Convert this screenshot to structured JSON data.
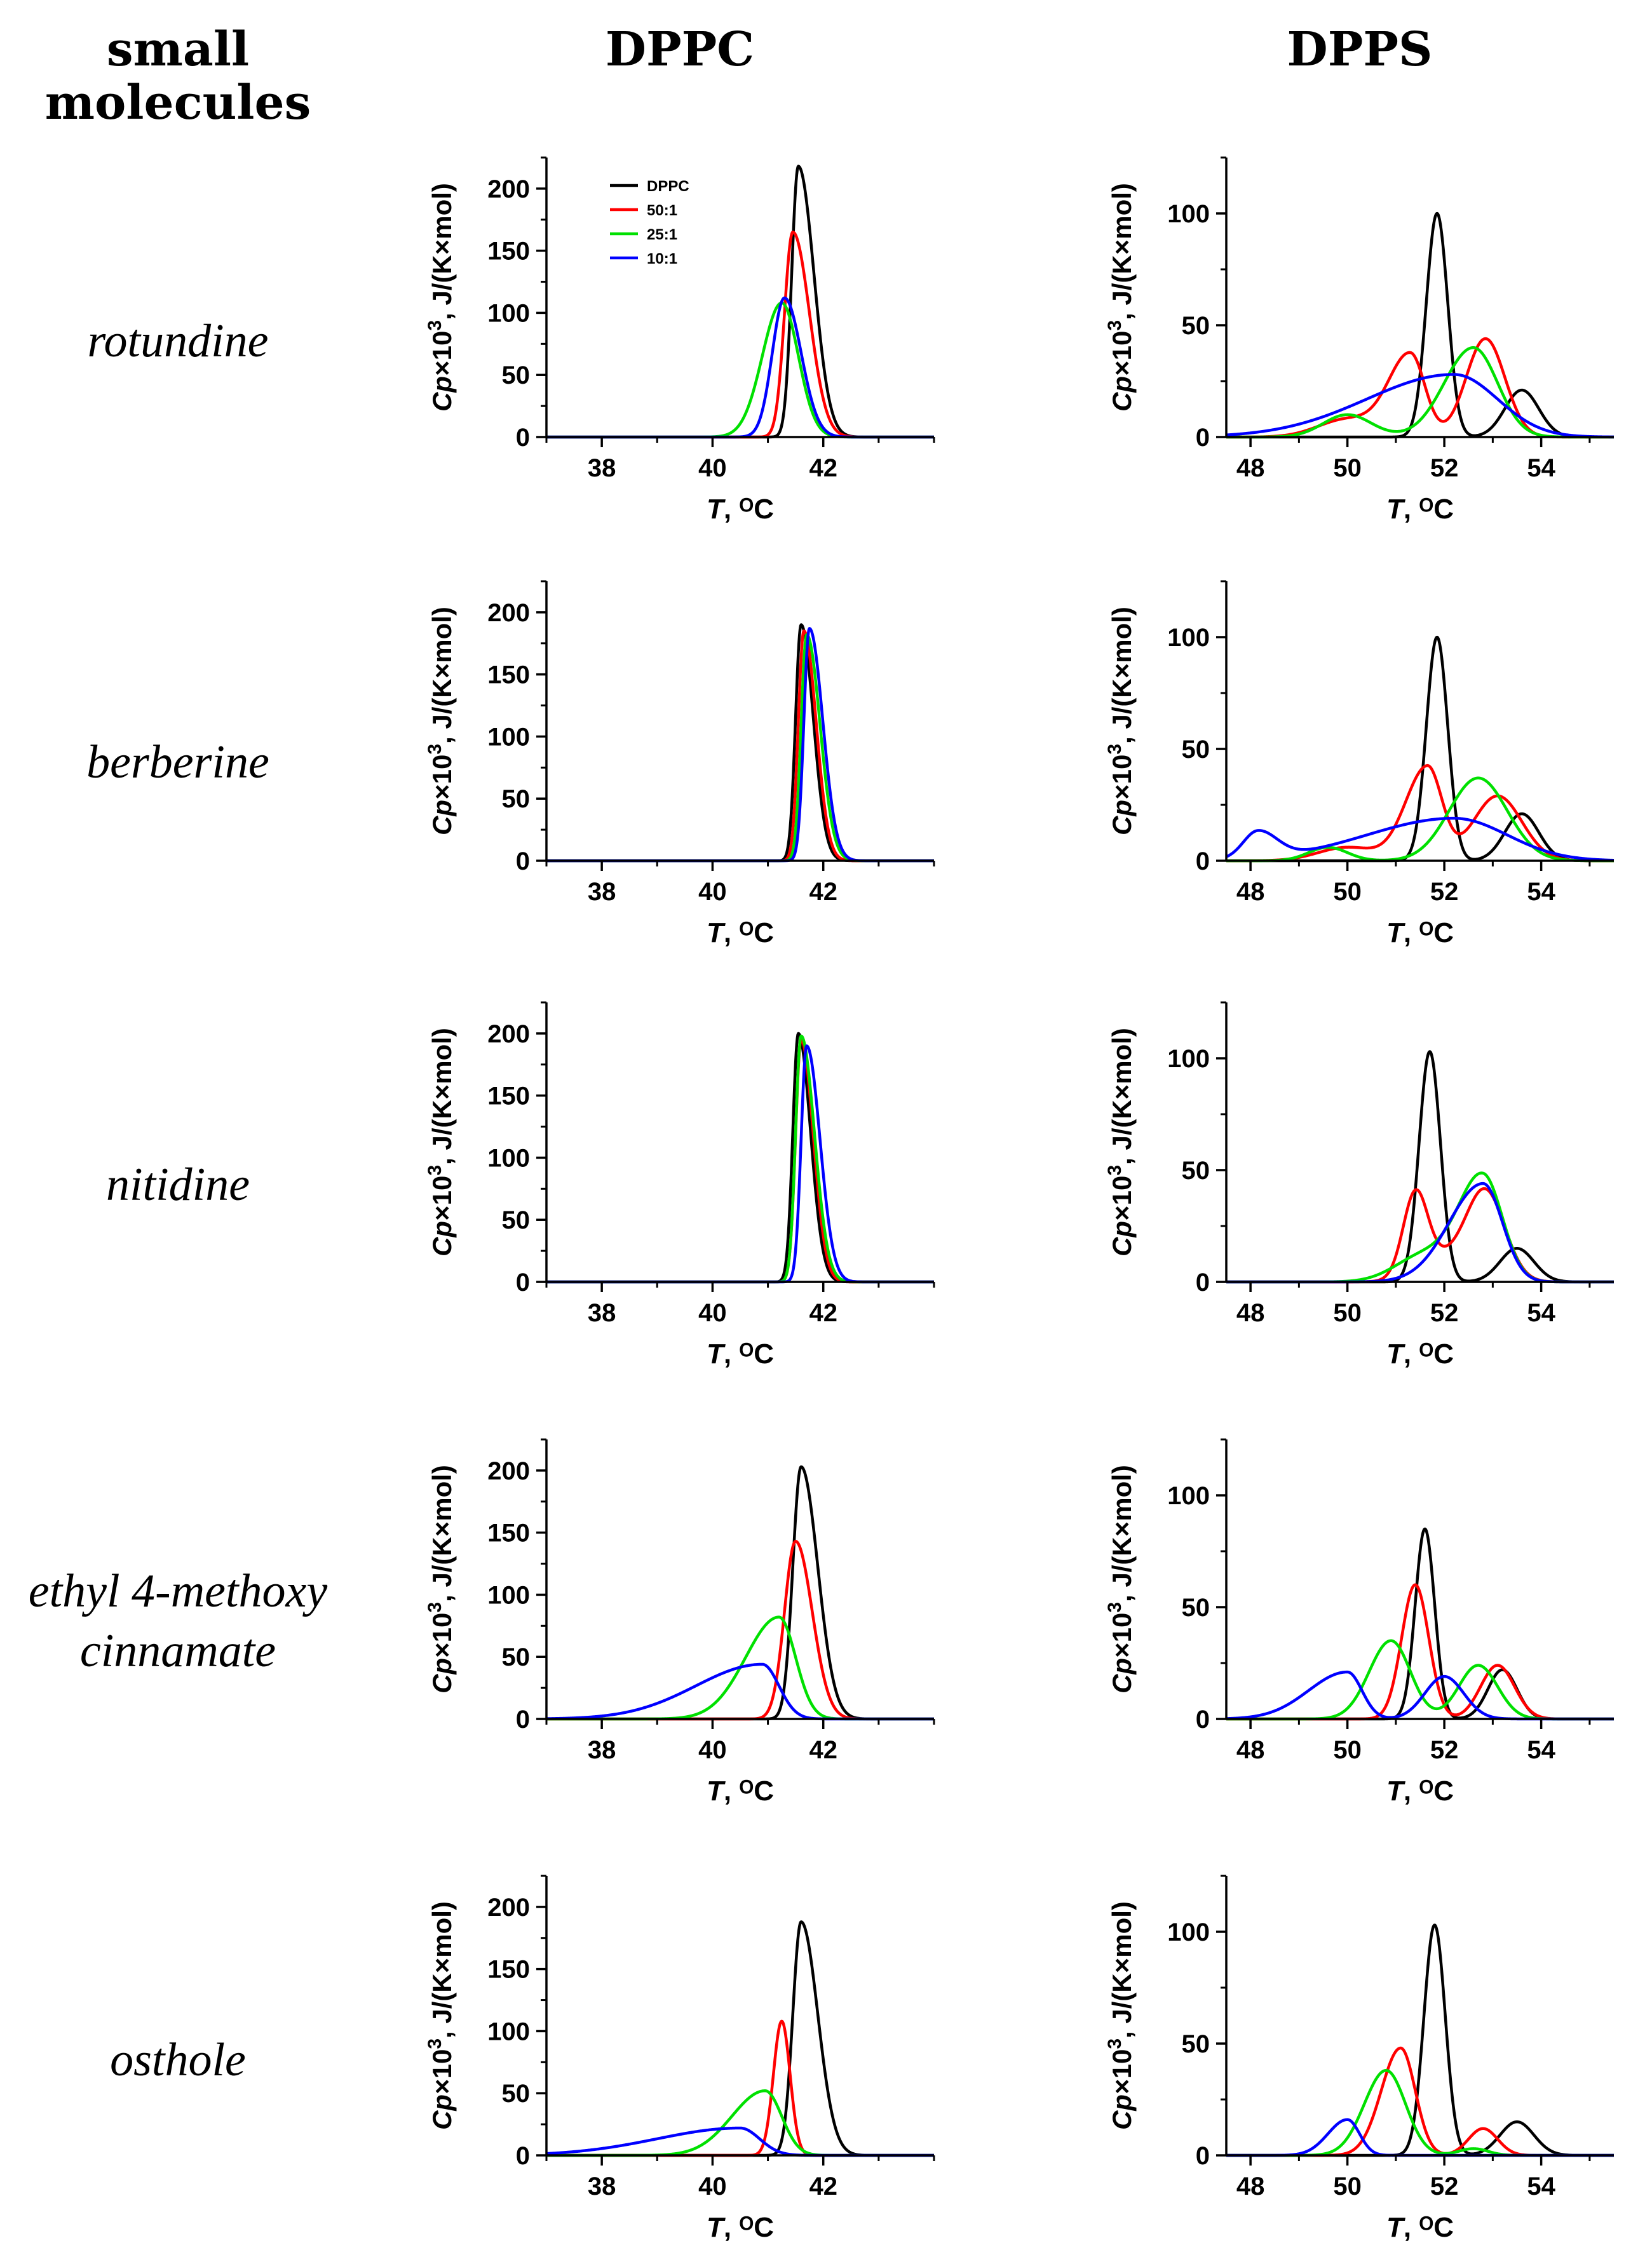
{
  "headers": {
    "molecules": "small\nmolecules",
    "dppc": "DPPC",
    "dpps": "DPPS"
  },
  "rows": [
    {
      "label": "rotundine"
    },
    {
      "label": "berberine"
    },
    {
      "label": "nitidine"
    },
    {
      "label": "ethyl 4-methoxy\ncinnamate"
    },
    {
      "label": "osthole"
    }
  ],
  "colors": {
    "DPPC": "#000000",
    "50:1": "#ff0000",
    "25:1": "#00e000",
    "10:1": "#0000ff"
  },
  "legend": [
    "DPPC",
    "50:1",
    "25:1",
    "10:1"
  ],
  "axis_labels": {
    "y_main": "Cp",
    "y_rest": "×10",
    "y_exp": "3",
    "y_unit": ", J/(K×mol)",
    "x_t": "T",
    "x_unit": ", ᴼC"
  },
  "chart_data": [
    {
      "type": "line",
      "row": "rotundine",
      "lipid": "DPPC",
      "xlim": [
        37,
        44
      ],
      "ylim": [
        0,
        225
      ],
      "xticks": [
        38,
        40,
        42
      ],
      "yticks": [
        0,
        50,
        100,
        150,
        200
      ],
      "series": [
        {
          "name": "DPPC",
          "peaks": [
            [
              41.55,
              218,
              0.12,
              0.28
            ]
          ]
        },
        {
          "name": "50:1",
          "peaks": [
            [
              41.45,
              165,
              0.15,
              0.3
            ]
          ]
        },
        {
          "name": "25:1",
          "peaks": [
            [
              41.25,
              108,
              0.35,
              0.3
            ]
          ]
        },
        {
          "name": "10:1",
          "peaks": [
            [
              41.3,
              112,
              0.22,
              0.3
            ]
          ]
        }
      ]
    },
    {
      "type": "line",
      "row": "rotundine",
      "lipid": "DPPS",
      "xlim": [
        47.5,
        55.5
      ],
      "ylim": [
        0,
        125
      ],
      "xticks": [
        48,
        50,
        52,
        54
      ],
      "yticks": [
        0,
        50,
        100
      ],
      "series": [
        {
          "name": "DPPC",
          "peaks": [
            [
              51.85,
              100,
              0.22,
              0.22
            ],
            [
              53.6,
              21,
              0.35,
              0.35
            ]
          ]
        },
        {
          "name": "50:1",
          "peaks": [
            [
              51.3,
              37,
              0.45,
              0.3
            ],
            [
              52.85,
              44,
              0.4,
              0.4
            ],
            [
              50.0,
              8,
              0.6,
              0.6
            ]
          ]
        },
        {
          "name": "25:1",
          "peaks": [
            [
              52.6,
              40,
              0.6,
              0.5
            ],
            [
              50.0,
              10,
              0.5,
              0.5
            ]
          ]
        },
        {
          "name": "10:1",
          "peaks": [
            [
              52.2,
              28,
              1.8,
              0.9
            ]
          ]
        }
      ]
    },
    {
      "type": "line",
      "row": "berberine",
      "lipid": "DPPC",
      "xlim": [
        37,
        44
      ],
      "ylim": [
        0,
        225
      ],
      "xticks": [
        38,
        40,
        42
      ],
      "yticks": [
        0,
        50,
        100,
        150,
        200
      ],
      "series": [
        {
          "name": "DPPC",
          "peaks": [
            [
              41.6,
              190,
              0.1,
              0.22
            ]
          ]
        },
        {
          "name": "50:1",
          "peaks": [
            [
              41.65,
              185,
              0.1,
              0.22
            ]
          ]
        },
        {
          "name": "25:1",
          "peaks": [
            [
              41.7,
              182,
              0.1,
              0.24
            ]
          ]
        },
        {
          "name": "10:1",
          "peaks": [
            [
              41.75,
              187,
              0.1,
              0.24
            ]
          ]
        }
      ]
    },
    {
      "type": "line",
      "row": "berberine",
      "lipid": "DPPS",
      "xlim": [
        47.5,
        55.5
      ],
      "ylim": [
        0,
        125
      ],
      "xticks": [
        48,
        50,
        52,
        54
      ],
      "yticks": [
        0,
        50,
        100
      ],
      "series": [
        {
          "name": "DPPC",
          "peaks": [
            [
              51.85,
              100,
              0.22,
              0.22
            ],
            [
              53.6,
              21,
              0.35,
              0.35
            ]
          ]
        },
        {
          "name": "50:1",
          "peaks": [
            [
              51.65,
              42,
              0.45,
              0.3
            ],
            [
              53.1,
              29,
              0.5,
              0.5
            ],
            [
              50.0,
              6,
              0.6,
              0.6
            ]
          ]
        },
        {
          "name": "25:1",
          "peaks": [
            [
              52.7,
              37,
              0.6,
              0.6
            ],
            [
              49.6,
              6,
              0.4,
              0.4
            ]
          ]
        },
        {
          "name": "10:1",
          "peaks": [
            [
              48.15,
              12,
              0.3,
              0.4
            ],
            [
              52.2,
              19,
              1.8,
              1.1
            ]
          ]
        }
      ]
    },
    {
      "type": "line",
      "row": "nitidine",
      "lipid": "DPPC",
      "xlim": [
        37,
        44
      ],
      "ylim": [
        0,
        225
      ],
      "xticks": [
        38,
        40,
        42
      ],
      "yticks": [
        0,
        50,
        100,
        150,
        200
      ],
      "series": [
        {
          "name": "DPPC",
          "peaks": [
            [
              41.55,
              200,
              0.1,
              0.22
            ]
          ]
        },
        {
          "name": "50:1",
          "peaks": [
            [
              41.6,
              195,
              0.1,
              0.22
            ]
          ]
        },
        {
          "name": "25:1",
          "peaks": [
            [
              41.6,
              198,
              0.1,
              0.24
            ]
          ]
        },
        {
          "name": "10:1",
          "peaks": [
            [
              41.7,
              190,
              0.1,
              0.24
            ]
          ]
        }
      ]
    },
    {
      "type": "line",
      "row": "nitidine",
      "lipid": "DPPS",
      "xlim": [
        47.5,
        55.5
      ],
      "ylim": [
        0,
        125
      ],
      "xticks": [
        48,
        50,
        52,
        54
      ],
      "yticks": [
        0,
        50,
        100
      ],
      "series": [
        {
          "name": "DPPC",
          "peaks": [
            [
              51.7,
              103,
              0.22,
              0.22
            ],
            [
              53.5,
              15,
              0.35,
              0.35
            ]
          ]
        },
        {
          "name": "50:1",
          "peaks": [
            [
              51.4,
              35,
              0.25,
              0.25
            ],
            [
              52.85,
              40,
              0.4,
              0.4
            ],
            [
              51.9,
              10,
              0.5,
              0.5
            ]
          ]
        },
        {
          "name": "25:1",
          "peaks": [
            [
              52.8,
              47,
              0.5,
              0.4
            ],
            [
              51.6,
              12,
              0.6,
              0.6
            ]
          ]
        },
        {
          "name": "10:1",
          "peaks": [
            [
              52.8,
              44,
              0.7,
              0.4
            ]
          ]
        }
      ]
    },
    {
      "type": "line",
      "row": "ethyl 4-methoxy cinnamate",
      "lipid": "DPPC",
      "xlim": [
        37,
        44
      ],
      "ylim": [
        0,
        225
      ],
      "xticks": [
        38,
        40,
        42
      ],
      "yticks": [
        0,
        50,
        100,
        150,
        200
      ],
      "series": [
        {
          "name": "DPPC",
          "peaks": [
            [
              41.6,
              203,
              0.15,
              0.3
            ]
          ]
        },
        {
          "name": "50:1",
          "peaks": [
            [
              41.5,
              143,
              0.2,
              0.3
            ]
          ]
        },
        {
          "name": "25:1",
          "peaks": [
            [
              41.2,
              82,
              0.6,
              0.3
            ]
          ]
        },
        {
          "name": "10:1",
          "peaks": [
            [
              40.9,
              44,
              1.2,
              0.3
            ]
          ]
        }
      ]
    },
    {
      "type": "line",
      "row": "ethyl 4-methoxy cinnamate",
      "lipid": "DPPS",
      "xlim": [
        47.5,
        55.5
      ],
      "ylim": [
        0,
        125
      ],
      "xticks": [
        48,
        50,
        52,
        54
      ],
      "yticks": [
        0,
        50,
        100
      ],
      "series": [
        {
          "name": "DPPC",
          "peaks": [
            [
              51.6,
              85,
              0.2,
              0.2
            ],
            [
              53.2,
              22,
              0.3,
              0.3
            ]
          ]
        },
        {
          "name": "50:1",
          "peaks": [
            [
              51.4,
              60,
              0.28,
              0.28
            ],
            [
              53.1,
              24,
              0.35,
              0.35
            ]
          ]
        },
        {
          "name": "25:1",
          "peaks": [
            [
              50.9,
              35,
              0.45,
              0.4
            ],
            [
              52.7,
              24,
              0.4,
              0.4
            ]
          ]
        },
        {
          "name": "10:1",
          "peaks": [
            [
              50.0,
              21,
              0.8,
              0.3
            ],
            [
              52.0,
              19,
              0.4,
              0.4
            ]
          ]
        }
      ]
    },
    {
      "type": "line",
      "row": "osthole",
      "lipid": "DPPC",
      "xlim": [
        37,
        44
      ],
      "ylim": [
        0,
        225
      ],
      "xticks": [
        38,
        40,
        42
      ],
      "yticks": [
        0,
        50,
        100,
        150,
        200
      ],
      "series": [
        {
          "name": "DPPC",
          "peaks": [
            [
              41.6,
              188,
              0.15,
              0.3
            ]
          ]
        },
        {
          "name": "50:1",
          "peaks": [
            [
              41.25,
              108,
              0.15,
              0.15
            ]
          ]
        },
        {
          "name": "25:1",
          "peaks": [
            [
              40.95,
              52,
              0.6,
              0.3
            ]
          ]
        },
        {
          "name": "10:1",
          "peaks": [
            [
              40.5,
              22,
              1.5,
              0.35
            ]
          ]
        }
      ]
    },
    {
      "type": "line",
      "row": "osthole",
      "lipid": "DPPS",
      "xlim": [
        47.5,
        55.5
      ],
      "ylim": [
        0,
        125
      ],
      "xticks": [
        48,
        50,
        52,
        54
      ],
      "yticks": [
        0,
        50,
        100
      ],
      "series": [
        {
          "name": "DPPC",
          "peaks": [
            [
              51.8,
              103,
              0.22,
              0.22
            ],
            [
              53.5,
              15,
              0.35,
              0.35
            ]
          ]
        },
        {
          "name": "50:1",
          "peaks": [
            [
              51.1,
              48,
              0.4,
              0.3
            ],
            [
              52.8,
              12,
              0.3,
              0.3
            ]
          ]
        },
        {
          "name": "25:1",
          "peaks": [
            [
              50.8,
              38,
              0.45,
              0.4
            ],
            [
              52.6,
              3,
              0.3,
              0.3
            ]
          ]
        },
        {
          "name": "10:1",
          "peaks": [
            [
              50.0,
              16,
              0.4,
              0.25
            ]
          ]
        }
      ]
    }
  ]
}
